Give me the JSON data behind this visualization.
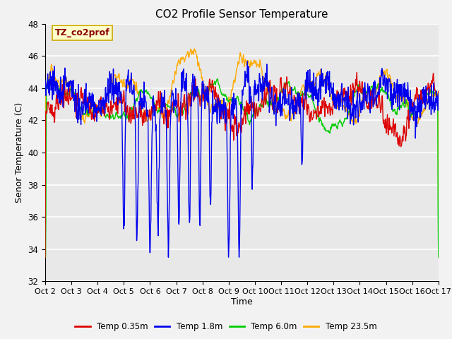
{
  "title": "CO2 Profile Sensor Temperature",
  "ylabel": "Senor Temperature (C)",
  "xlabel": "Time",
  "ylim": [
    32,
    48
  ],
  "yticks": [
    32,
    34,
    36,
    38,
    40,
    42,
    44,
    46,
    48
  ],
  "xtick_labels": [
    "Oct 2",
    "Oct 3",
    "Oct 4",
    "Oct 5",
    "Oct 6",
    "Oct 7",
    "Oct 8",
    "Oct 9",
    "Oct 10",
    "Oct 11",
    "Oct 12",
    "Oct 13",
    "Oct 14",
    "Oct 15",
    "Oct 16",
    "Oct 17"
  ],
  "annotation_text": "TZ_co2prof",
  "annotation_color": "#8b0000",
  "annotation_bg": "#ffffcc",
  "annotation_edge": "#ccaa00",
  "series_colors": [
    "#dd0000",
    "#0000ee",
    "#00cc00",
    "#ffaa00"
  ],
  "series_labels": [
    "Temp 0.35m",
    "Temp 1.8m",
    "Temp 6.0m",
    "Temp 23.5m"
  ],
  "linewidth": 1.0,
  "bg_color": "#e8e8e8",
  "grid_color": "#ffffff",
  "title_fontsize": 11,
  "label_fontsize": 9,
  "tick_fontsize": 8.5
}
